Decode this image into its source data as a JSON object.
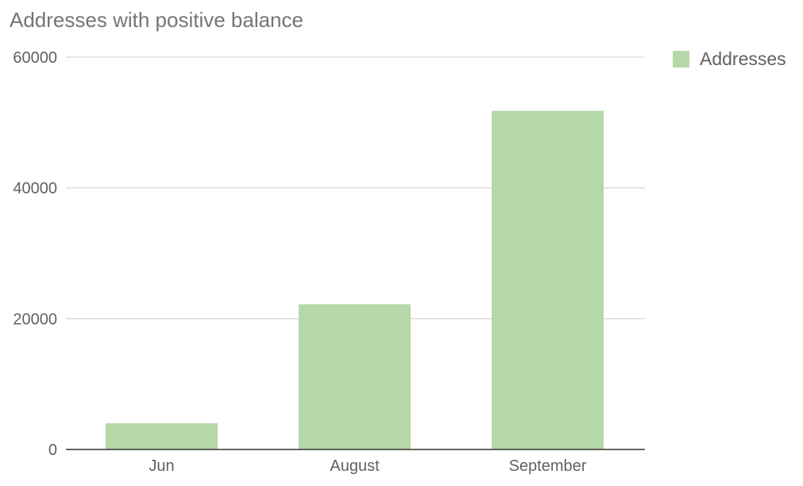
{
  "chart_data": {
    "type": "bar",
    "title": "Addresses with positive balance",
    "categories": [
      "Jun",
      "August",
      "September"
    ],
    "series": [
      {
        "name": "Addresses",
        "values": [
          4000,
          22200,
          51800
        ],
        "color": "#b6d7a8"
      }
    ],
    "ylim": [
      0,
      60000
    ],
    "yticks": [
      "0",
      "20000",
      "40000",
      "60000"
    ],
    "grid": true,
    "legend": "right"
  }
}
